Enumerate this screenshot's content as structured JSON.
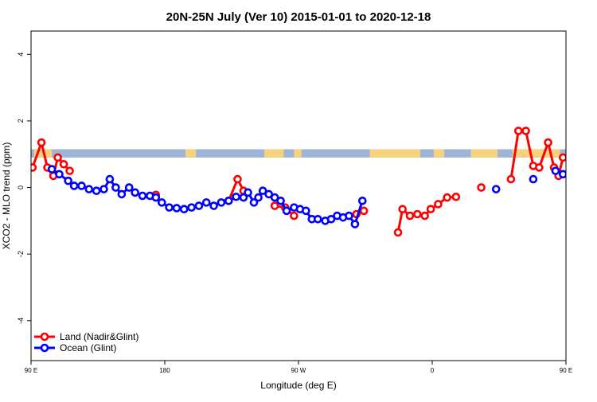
{
  "chart_data": {
    "type": "line",
    "title": "20N-25N July (Ver 10)   2015-01-01 to 2020-12-18",
    "xlabel": "Longitude (deg E)",
    "ylabel": "XCO2 - MLO trend (ppm)",
    "xlim": [
      90,
      450
    ],
    "ylim": [
      -5.2,
      4.7
    ],
    "x_ticks": [
      {
        "value": 90,
        "label": "90 E"
      },
      {
        "value": 180,
        "label": "180"
      },
      {
        "value": 270,
        "label": "90 W"
      },
      {
        "value": 360,
        "label": "0"
      },
      {
        "value": 450,
        "label": "90 E"
      },
      {
        "value": 540,
        "label": "180"
      }
    ],
    "y_ticks": [
      -4,
      -2,
      0,
      2,
      4
    ],
    "band": {
      "y_min": 0.9,
      "y_max": 1.15,
      "ocean_color": "#9fb4d6",
      "land_color": "#f7d27e"
    },
    "legend_position": "bottom-left",
    "series": [
      {
        "name": "Land (Nadir&Glint)",
        "color": "#ff0000",
        "segments": [
          [
            [
              91,
              0.6
            ],
            [
              97,
              1.35
            ],
            [
              101,
              0.6
            ],
            [
              105,
              0.35
            ],
            [
              108,
              0.9
            ],
            [
              112,
              0.7
            ],
            [
              116,
              0.5
            ]
          ],
          [
            [
              174,
              -0.22
            ]
          ],
          [
            [
              223,
              -0.4
            ],
            [
              229,
              0.25
            ],
            [
              233,
              -0.1
            ]
          ],
          [
            [
              254,
              -0.55
            ],
            [
              261,
              -0.6
            ],
            [
              267,
              -0.85
            ]
          ],
          [
            [
              309,
              -0.8
            ],
            [
              314,
              -0.7
            ]
          ],
          [
            [
              337,
              -1.35
            ],
            [
              340,
              -0.65
            ],
            [
              345,
              -0.85
            ],
            [
              350,
              -0.8
            ],
            [
              355,
              -0.85
            ],
            [
              359,
              -0.65
            ],
            [
              364,
              -0.5
            ],
            [
              370,
              -0.3
            ],
            [
              376,
              -0.28
            ]
          ],
          [
            [
              393,
              0.0
            ]
          ],
          [
            [
              413,
              0.25
            ],
            [
              418,
              1.7
            ],
            [
              423,
              1.7
            ],
            [
              428,
              0.65
            ],
            [
              432,
              0.6
            ],
            [
              438,
              1.35
            ],
            [
              442,
              0.6
            ],
            [
              445,
              0.35
            ],
            [
              448,
              0.9
            ]
          ]
        ]
      },
      {
        "name": "Ocean (Glint)",
        "color": "#0000ff",
        "segments": [
          [
            [
              104,
              0.55
            ],
            [
              109,
              0.4
            ],
            [
              115,
              0.2
            ],
            [
              119,
              0.05
            ],
            [
              124,
              0.05
            ],
            [
              129,
              -0.05
            ],
            [
              134,
              -0.1
            ],
            [
              139,
              -0.05
            ],
            [
              143,
              0.25
            ],
            [
              147,
              0.0
            ],
            [
              151,
              -0.2
            ],
            [
              156,
              0.0
            ],
            [
              160,
              -0.15
            ],
            [
              165,
              -0.25
            ],
            [
              170,
              -0.25
            ],
            [
              174,
              -0.3
            ],
            [
              178,
              -0.45
            ],
            [
              183,
              -0.6
            ],
            [
              188,
              -0.62
            ],
            [
              193,
              -0.65
            ],
            [
              198,
              -0.6
            ],
            [
              203,
              -0.55
            ],
            [
              208,
              -0.45
            ],
            [
              213,
              -0.55
            ],
            [
              218,
              -0.45
            ],
            [
              223,
              -0.4
            ],
            [
              228,
              -0.28
            ],
            [
              233,
              -0.3
            ],
            [
              236,
              -0.15
            ],
            [
              240,
              -0.45
            ],
            [
              243,
              -0.3
            ],
            [
              246,
              -0.1
            ],
            [
              250,
              -0.2
            ],
            [
              254,
              -0.3
            ],
            [
              258,
              -0.4
            ],
            [
              262,
              -0.7
            ],
            [
              267,
              -0.6
            ],
            [
              271,
              -0.65
            ],
            [
              275,
              -0.7
            ],
            [
              279,
              -0.95
            ],
            [
              283,
              -0.95
            ],
            [
              288,
              -1.0
            ],
            [
              292,
              -0.95
            ],
            [
              296,
              -0.85
            ],
            [
              300,
              -0.9
            ],
            [
              304,
              -0.85
            ],
            [
              308,
              -1.1
            ],
            [
              313,
              -0.4
            ]
          ],
          [
            [
              403,
              -0.05
            ]
          ],
          [
            [
              428,
              0.25
            ]
          ],
          [
            [
              443,
              0.5
            ],
            [
              448,
              0.4
            ]
          ]
        ]
      }
    ]
  }
}
